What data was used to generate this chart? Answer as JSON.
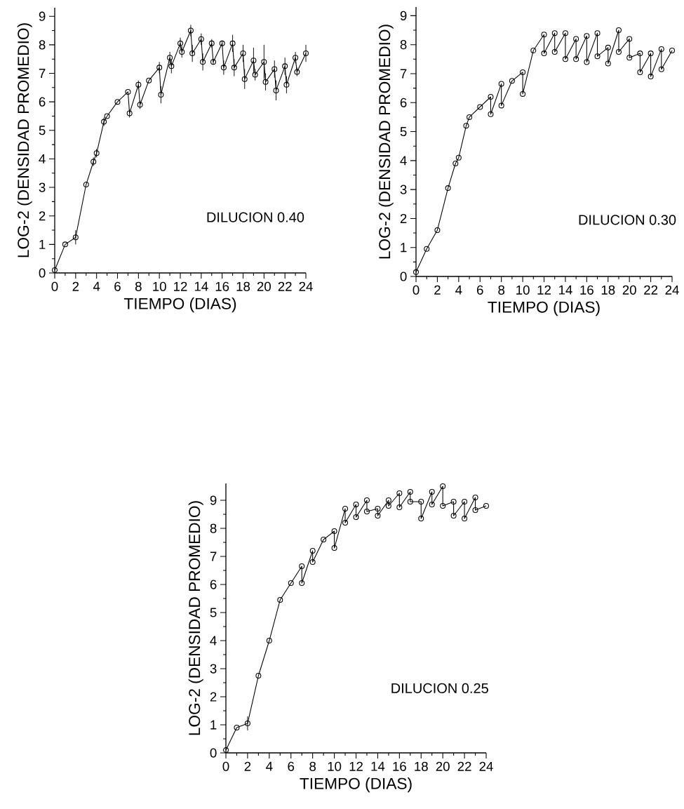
{
  "chart_data": [
    {
      "type": "line",
      "xlabel": "TIEMPO (DIAS)",
      "ylabel": "LOG-2 (DENSIDAD PROMEDIO)",
      "annotations": [
        "DILUCION 0.40"
      ],
      "marker": "circle",
      "xlim": [
        0,
        24
      ],
      "ylim": [
        0,
        9.3
      ],
      "xticks": [
        0,
        2,
        4,
        6,
        8,
        10,
        12,
        14,
        16,
        18,
        20,
        22,
        24
      ],
      "yticks": [
        0,
        1,
        2,
        3,
        4,
        5,
        6,
        7,
        8,
        9
      ],
      "x": [
        0,
        1,
        2,
        3,
        3.7,
        4,
        4.7,
        5,
        6,
        7,
        7.15,
        8,
        8.15,
        9,
        10,
        10.15,
        11,
        11.15,
        12,
        12.15,
        13,
        13.15,
        14,
        14.15,
        15,
        15.15,
        16,
        16.15,
        17,
        17.15,
        18,
        18.15,
        19,
        19.15,
        20,
        20.15,
        21,
        21.15,
        22,
        22.15,
        23,
        23.15,
        24
      ],
      "values": [
        0.1,
        1.0,
        1.25,
        3.1,
        3.9,
        4.2,
        5.3,
        5.5,
        6.0,
        6.35,
        5.6,
        6.6,
        5.9,
        6.75,
        7.2,
        6.25,
        7.55,
        7.25,
        8.05,
        7.75,
        8.5,
        7.7,
        8.2,
        7.4,
        8.05,
        7.4,
        8.05,
        7.2,
        8.05,
        7.2,
        7.7,
        6.8,
        7.45,
        6.95,
        7.4,
        6.7,
        7.15,
        6.4,
        7.25,
        6.6,
        7.55,
        7.05,
        7.7
      ],
      "errors": [
        null,
        null,
        0.25,
        null,
        0.15,
        0.15,
        0.15,
        null,
        null,
        null,
        0.15,
        0.15,
        0.15,
        null,
        0.2,
        0.3,
        0.2,
        0.25,
        0.2,
        0.2,
        0.2,
        0.3,
        0.2,
        0.3,
        0.15,
        0.1,
        0.1,
        0.25,
        0.3,
        0.3,
        0.3,
        0.35,
        0.45,
        0.2,
        0.6,
        0.3,
        0.3,
        0.35,
        0.3,
        0.3,
        0.2,
        0.15,
        0.3
      ]
    },
    {
      "type": "line",
      "xlabel": "TIEMPO (DIAS)",
      "ylabel": "LOG-2 (DENSIDAD PROMEDIO)",
      "annotations": [
        "DILUCION 0.30"
      ],
      "marker": "circle",
      "xlim": [
        0,
        24
      ],
      "ylim": [
        0,
        9.3
      ],
      "xticks": [
        0,
        2,
        4,
        6,
        8,
        10,
        12,
        14,
        16,
        18,
        20,
        22,
        24
      ],
      "yticks": [
        0,
        1,
        2,
        3,
        4,
        5,
        6,
        7,
        8,
        9
      ],
      "x": [
        0,
        1,
        2,
        3,
        3.7,
        4,
        4.7,
        5,
        6,
        7,
        7,
        8,
        8,
        9,
        10,
        10,
        11,
        12,
        12,
        13,
        13,
        14,
        14,
        15,
        15,
        16,
        16,
        17,
        17,
        18,
        18,
        19,
        19,
        20,
        20,
        21,
        21,
        22,
        22,
        23,
        23,
        24
      ],
      "values": [
        0.15,
        0.95,
        1.6,
        3.05,
        3.9,
        4.1,
        5.2,
        5.5,
        5.85,
        6.2,
        5.6,
        6.65,
        5.9,
        6.75,
        7.05,
        6.3,
        7.8,
        8.35,
        7.7,
        8.4,
        7.75,
        8.4,
        7.5,
        8.2,
        7.5,
        8.3,
        7.4,
        8.4,
        7.6,
        7.9,
        7.35,
        8.5,
        7.75,
        8.2,
        7.55,
        7.7,
        7.05,
        7.7,
        6.9,
        7.85,
        7.15,
        7.8
      ]
    },
    {
      "type": "line",
      "xlabel": "TIEMPO (DIAS)",
      "ylabel": "LOG-2 (DENSIDAD PROMEDIO)",
      "annotations": [
        "DILUCION 0.25"
      ],
      "marker": "circle",
      "xlim": [
        0,
        24
      ],
      "ylim": [
        0,
        9.6
      ],
      "xticks": [
        0,
        2,
        4,
        6,
        8,
        10,
        12,
        14,
        16,
        18,
        20,
        22,
        24
      ],
      "yticks": [
        0,
        1,
        2,
        3,
        4,
        5,
        6,
        7,
        8,
        9
      ],
      "x": [
        0,
        1,
        2,
        3,
        4,
        5,
        6,
        7,
        7,
        8,
        8,
        9,
        10,
        10,
        11,
        11,
        12,
        12,
        13,
        13,
        14,
        14,
        15,
        15,
        16,
        16,
        17,
        17,
        18,
        18,
        19,
        19,
        20,
        20,
        21,
        21,
        22,
        22,
        23,
        23,
        24
      ],
      "values": [
        0.1,
        0.9,
        1.05,
        2.75,
        4.0,
        5.45,
        6.05,
        6.65,
        6.05,
        7.2,
        6.8,
        7.6,
        7.9,
        7.3,
        8.7,
        8.2,
        8.85,
        8.4,
        9.0,
        8.6,
        8.7,
        8.45,
        9.0,
        8.8,
        9.25,
        8.75,
        9.3,
        8.95,
        8.95,
        8.35,
        9.3,
        8.85,
        9.5,
        8.8,
        8.95,
        8.45,
        8.95,
        8.35,
        9.1,
        8.65,
        8.8
      ],
      "errors": [
        null,
        null,
        0.25,
        null,
        null,
        null,
        null,
        null,
        null,
        null,
        null,
        null,
        null,
        null,
        null,
        null,
        null,
        null,
        null,
        null,
        null,
        null,
        null,
        null,
        null,
        null,
        null,
        null,
        null,
        null,
        null,
        null,
        null,
        null,
        null,
        null,
        null,
        null,
        null,
        null,
        null
      ]
    }
  ]
}
